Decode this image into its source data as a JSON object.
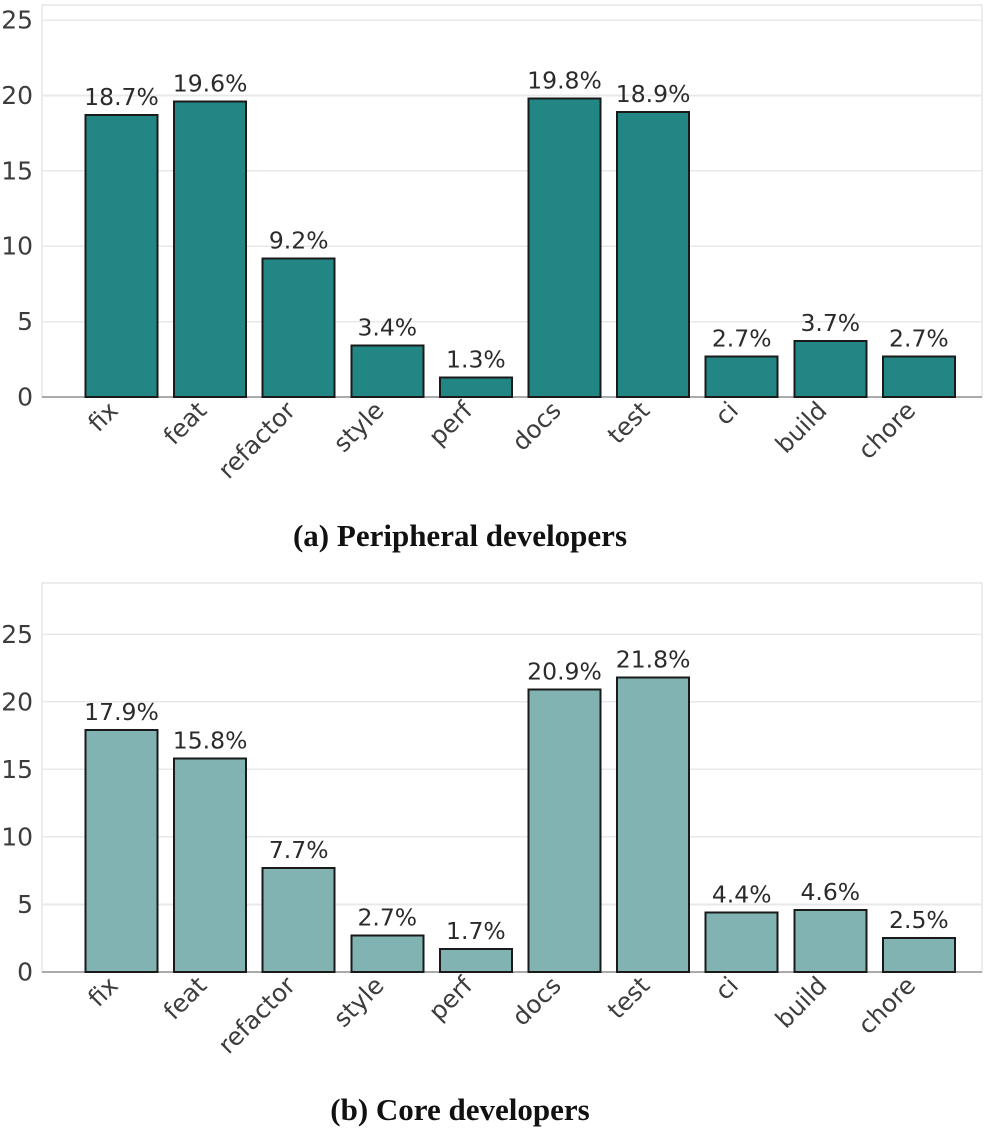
{
  "page": {
    "background": "#ffffff"
  },
  "styles": {
    "grid_color": "#e8e8e8",
    "spine_color": "#d9d9d9",
    "axis_line_color": "#ababab",
    "tick_label_color": "#3d3d3d",
    "value_label_color": "#2b2b2b",
    "caption_color": "#111111"
  },
  "chart_data": [
    {
      "type": "bar",
      "title": "",
      "caption": "(a) Peripheral developers",
      "categories": [
        "fix",
        "feat",
        "refactor",
        "style",
        "perf",
        "docs",
        "test",
        "ci",
        "build",
        "chore"
      ],
      "values": [
        18.7,
        19.6,
        9.2,
        3.4,
        1.3,
        19.8,
        18.9,
        2.7,
        3.7,
        2.7
      ],
      "value_labels": [
        "18.7%",
        "19.6%",
        "9.2%",
        "3.4%",
        "1.3%",
        "19.8%",
        "18.9%",
        "2.7%",
        "3.7%",
        "2.7%"
      ],
      "xlabel": "",
      "ylabel": "",
      "ylim": [
        0,
        26.0
      ],
      "yticks": [
        0,
        5,
        10,
        15,
        20,
        25
      ],
      "ytick_labels": [
        "0",
        "5",
        "10",
        "15",
        "20",
        "25"
      ],
      "grid": true,
      "legend": "none",
      "bar_color": "#228784",
      "bar_edge_color": "#1a1a1a"
    },
    {
      "type": "bar",
      "title": "",
      "caption": "(b) Core developers",
      "categories": [
        "fix",
        "feat",
        "refactor",
        "style",
        "perf",
        "docs",
        "test",
        "ci",
        "build",
        "chore"
      ],
      "values": [
        17.9,
        15.8,
        7.7,
        2.7,
        1.7,
        20.9,
        21.8,
        4.4,
        4.6,
        2.5
      ],
      "value_labels": [
        "17.9%",
        "15.8%",
        "7.7%",
        "2.7%",
        "1.7%",
        "20.9%",
        "21.8%",
        "4.4%",
        "4.6%",
        "2.5%"
      ],
      "xlabel": "",
      "ylabel": "",
      "ylim": [
        0,
        28.8
      ],
      "yticks": [
        0,
        5,
        10,
        15,
        20,
        25
      ],
      "ytick_labels": [
        "0",
        "5",
        "10",
        "15",
        "20",
        "25"
      ],
      "grid": true,
      "legend": "none",
      "bar_color": "#80b3b2",
      "bar_edge_color": "#1a1a1a"
    }
  ]
}
